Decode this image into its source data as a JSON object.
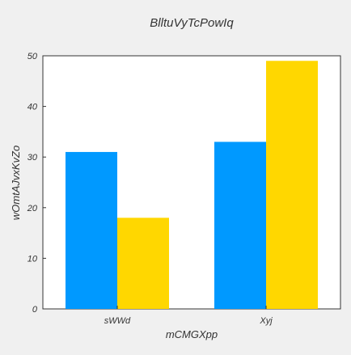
{
  "chart_data": {
    "type": "bar",
    "title": "BlltuVyTcPowIq",
    "xlabel": "mCMGXpp",
    "ylabel": "wOmtAJvxKvZo",
    "categories": [
      "sWWd",
      "Xyj"
    ],
    "series": [
      {
        "color": "#0099ff",
        "values": [
          31,
          33
        ]
      },
      {
        "color": "#ffd700",
        "values": [
          18,
          49
        ]
      }
    ],
    "ylim": [
      0,
      50
    ],
    "yticks": [
      "0",
      "10",
      "20",
      "30",
      "40",
      "50"
    ],
    "grid": false,
    "legend": "none"
  },
  "colors": {
    "background": "#f0f0f0",
    "plot_background": "#ffffff",
    "axis": "#333333"
  }
}
